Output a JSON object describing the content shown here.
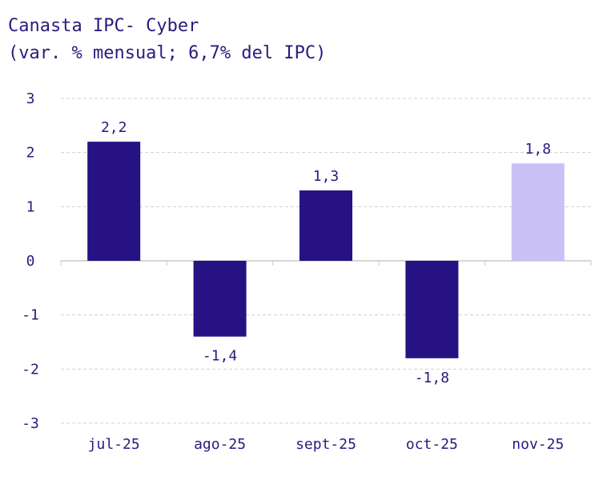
{
  "chart_data": {
    "type": "bar",
    "title": "Canasta IPC- Cyber",
    "subtitle": "(var. % mensual; 6,7% del IPC)",
    "categories": [
      "jul-25",
      "ago-25",
      "sept-25",
      "oct-25",
      "nov-25"
    ],
    "values": [
      2.2,
      -1.4,
      1.3,
      -1.8,
      1.8
    ],
    "data_labels": [
      "2,2",
      "-1,4",
      "1,3",
      "-1,8",
      "1,8"
    ],
    "bar_colors": [
      "#261282",
      "#261282",
      "#261282",
      "#261282",
      "#c9c1f5"
    ],
    "ylim": [
      -3,
      3
    ],
    "yticks": [
      3,
      2,
      1,
      0,
      -1,
      -2,
      -3
    ],
    "ytick_labels": [
      "3",
      "2",
      "1",
      "0",
      "-1",
      "-2",
      "-3"
    ],
    "xlabel": "",
    "ylabel": "",
    "grid": true,
    "text_color": "#2a1a7e",
    "grid_color": "#d0d0d0",
    "axis_color": "#c8c8c8"
  }
}
